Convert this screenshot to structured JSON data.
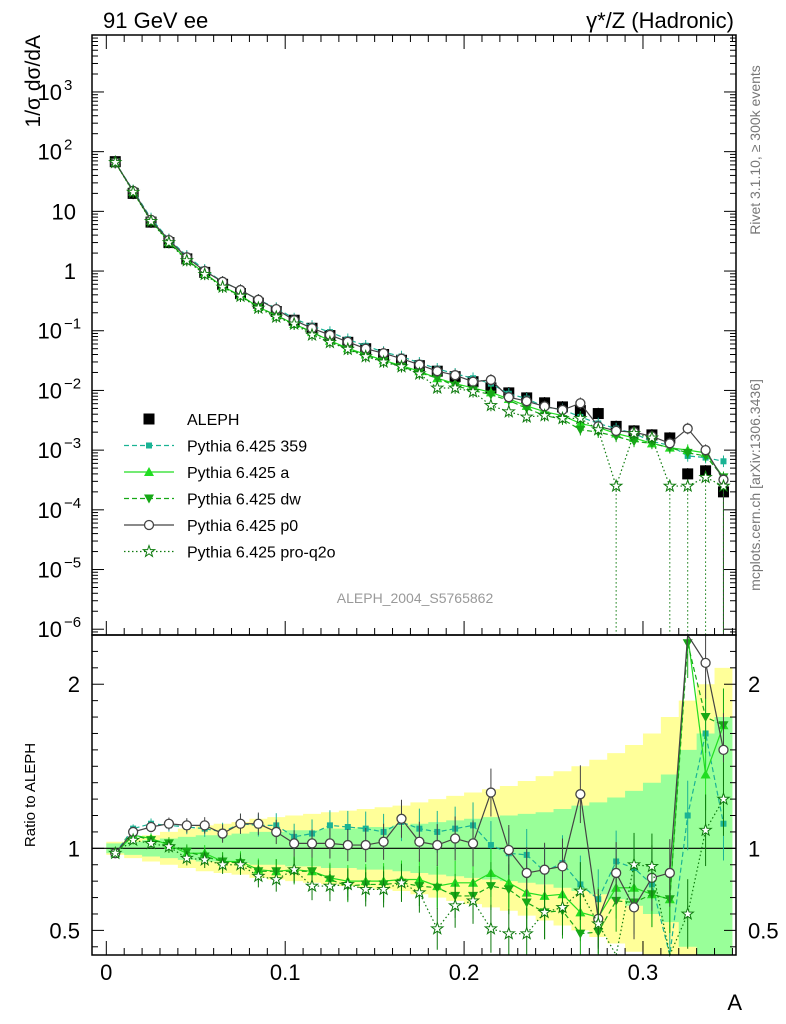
{
  "header": {
    "left_title": "91 GeV ee",
    "right_title": "γ*/Z (Hadronic)"
  },
  "side_labels": {
    "rivet": "Rivet 3.1.10, ≥ 300k events",
    "mcplots": "mcplots.cern.ch [arXiv:1306.3436]"
  },
  "watermark": "ALEPH_2004_S5765862",
  "colors": {
    "ALEPH": "#000000",
    "Pythia 6.425 359": "#1ab394",
    "Pythia 6.425 a": "#22dd22",
    "Pythia 6.425 dw": "#16a816",
    "Pythia 6.425 p0": "#444444",
    "Pythia 6.425 pro-q2o": "#0d7a0d",
    "band_yellow": "#ffff99",
    "band_green": "#99ff99"
  },
  "chart_data": [
    {
      "type": "line",
      "log_y": true,
      "ylabel": "1/σ dσ/dA",
      "xlabel": "",
      "xlim": [
        -0.008,
        0.352
      ],
      "ylim": [
        8e-07,
        9000
      ],
      "y_ticks": [
        {
          "v": 1e-06,
          "base": "10",
          "exp": "−6"
        },
        {
          "v": 1e-05,
          "base": "10",
          "exp": "−5"
        },
        {
          "v": 0.0001,
          "base": "10",
          "exp": "−4"
        },
        {
          "v": 0.001,
          "base": "10",
          "exp": "−3"
        },
        {
          "v": 0.01,
          "base": "10",
          "exp": "−2"
        },
        {
          "v": 0.1,
          "base": "10",
          "exp": "−1"
        },
        {
          "v": 1,
          "base": "1",
          "exp": ""
        },
        {
          "v": 10,
          "base": "10",
          "exp": ""
        },
        {
          "v": 100,
          "base": "10",
          "exp": "2"
        },
        {
          "v": 1000,
          "base": "10",
          "exp": "3"
        }
      ],
      "x": [
        0.005,
        0.015,
        0.025,
        0.035,
        0.045,
        0.055,
        0.065,
        0.075,
        0.085,
        0.095,
        0.105,
        0.115,
        0.125,
        0.135,
        0.145,
        0.155,
        0.165,
        0.175,
        0.185,
        0.195,
        0.205,
        0.215,
        0.225,
        0.235,
        0.245,
        0.255,
        0.265,
        0.275,
        0.285,
        0.295,
        0.305,
        0.315,
        0.325,
        0.335,
        0.345
      ],
      "legend": [
        "ALEPH",
        "Pythia 6.425 359",
        "Pythia 6.425 a",
        "Pythia 6.425 dw",
        "Pythia 6.425 p0",
        "Pythia 6.425 pro-q2o"
      ],
      "series": [
        {
          "name": "ALEPH",
          "values": [
            68,
            20,
            6.6,
            3.0,
            1.6,
            0.95,
            0.6,
            0.42,
            0.29,
            0.21,
            0.15,
            0.11,
            0.083,
            0.064,
            0.05,
            0.04,
            0.032,
            0.026,
            0.021,
            0.017,
            0.014,
            0.011,
            0.0091,
            0.0075,
            0.0062,
            0.0053,
            0.0046,
            0.0041,
            0.0025,
            0.0021,
            0.0018,
            0.0016,
            0.0004,
            0.00045,
            0.0002
          ]
        },
        {
          "name": "Pythia 6.425 359",
          "values": [
            66,
            22.5,
            7.6,
            3.4,
            1.8,
            1.05,
            0.66,
            0.48,
            0.33,
            0.24,
            0.16,
            0.12,
            0.095,
            0.072,
            0.056,
            0.044,
            0.037,
            0.029,
            0.023,
            0.019,
            0.016,
            0.013,
            0.0088,
            0.0073,
            0.0053,
            0.0048,
            0.0036,
            0.0028,
            0.0023,
            0.0019,
            0.0014,
            0.0012,
            0.0008,
            0.00075,
            0.00065
          ]
        },
        {
          "name": "Pythia 6.425 a",
          "values": [
            66,
            21.5,
            7.0,
            3.1,
            1.55,
            0.92,
            0.55,
            0.39,
            0.25,
            0.18,
            0.13,
            0.095,
            0.068,
            0.051,
            0.04,
            0.032,
            0.026,
            0.021,
            0.016,
            0.013,
            0.011,
            0.0093,
            0.0072,
            0.0055,
            0.0044,
            0.0038,
            0.0028,
            0.0024,
            0.0019,
            0.0016,
            0.0013,
            0.0011,
            0.001,
            0.0009,
            0.00035
          ]
        },
        {
          "name": "Pythia 6.425 dw",
          "values": [
            66,
            21.5,
            6.9,
            3.1,
            1.55,
            0.9,
            0.55,
            0.38,
            0.25,
            0.18,
            0.13,
            0.095,
            0.067,
            0.049,
            0.039,
            0.031,
            0.025,
            0.02,
            0.016,
            0.012,
            0.01,
            0.0085,
            0.0068,
            0.005,
            0.0038,
            0.0033,
            0.0022,
            0.002,
            0.0017,
            0.0014,
            0.0013,
            0.0011,
            0.0009,
            0.0008,
            0.00035
          ]
        },
        {
          "name": "Pythia 6.425 p0",
          "values": [
            66,
            22,
            7.2,
            3.3,
            1.7,
            1.0,
            0.66,
            0.48,
            0.33,
            0.23,
            0.15,
            0.11,
            0.085,
            0.065,
            0.05,
            0.042,
            0.034,
            0.027,
            0.021,
            0.018,
            0.014,
            0.015,
            0.0077,
            0.0066,
            0.0054,
            0.0047,
            0.0061,
            0.0025,
            0.0021,
            0.002,
            0.0017,
            0.0013,
            0.0023,
            0.001,
            0.00032
          ]
        },
        {
          "name": "Pythia 6.425 pro-q2o",
          "values": [
            66,
            21,
            6.8,
            3.0,
            1.5,
            0.88,
            0.54,
            0.38,
            0.24,
            0.17,
            0.13,
            0.085,
            0.064,
            0.049,
            0.037,
            0.03,
            0.025,
            0.019,
            0.011,
            0.011,
            0.0095,
            0.0056,
            0.0044,
            0.0036,
            0.0038,
            0.0034,
            0.0034,
            0.0022,
            0.00025,
            0.0019,
            0.0016,
            0.00025,
            0.00025,
            0.00035,
            0.00025
          ]
        }
      ]
    },
    {
      "type": "line",
      "log_y": false,
      "ylabel": "Ratio to ALEPH",
      "xlabel": "A",
      "xlim": [
        -0.008,
        0.352
      ],
      "ylim": [
        0.35,
        2.3
      ],
      "y_ticks": [
        0.5,
        1,
        2
      ],
      "x_ticks": [
        {
          "v": 0,
          "label": "0"
        },
        {
          "v": 0.1,
          "label": "0.1"
        },
        {
          "v": 0.2,
          "label": "0.2"
        },
        {
          "v": 0.3,
          "label": "0.3"
        }
      ],
      "band_inner_halfwidth": [
        0.03,
        0.04,
        0.05,
        0.06,
        0.07,
        0.08,
        0.08,
        0.09,
        0.1,
        0.1,
        0.11,
        0.11,
        0.12,
        0.12,
        0.13,
        0.13,
        0.14,
        0.15,
        0.16,
        0.17,
        0.18,
        0.19,
        0.2,
        0.21,
        0.22,
        0.24,
        0.26,
        0.28,
        0.31,
        0.35,
        0.4,
        0.45,
        0.6,
        0.7,
        0.8
      ],
      "band_outer_halfwidth": [
        0.04,
        0.06,
        0.08,
        0.1,
        0.12,
        0.14,
        0.15,
        0.16,
        0.18,
        0.19,
        0.2,
        0.21,
        0.22,
        0.23,
        0.24,
        0.25,
        0.26,
        0.28,
        0.3,
        0.32,
        0.34,
        0.36,
        0.38,
        0.41,
        0.44,
        0.47,
        0.5,
        0.54,
        0.58,
        0.63,
        0.7,
        0.8,
        0.9,
        1.0,
        1.1
      ],
      "series": [
        {
          "name": "Pythia 6.425 359",
          "values": [
            0.97,
            1.12,
            1.15,
            1.14,
            1.13,
            1.12,
            1.1,
            1.15,
            1.14,
            1.14,
            1.07,
            1.09,
            1.14,
            1.13,
            1.12,
            1.1,
            1.16,
            1.12,
            1.1,
            1.12,
            1.14,
            1.02,
            0.97,
            0.96,
            0.86,
            0.91,
            0.78,
            0.69,
            0.92,
            0.88,
            0.78,
            0.33,
            1.2,
            1.7,
            1.15
          ]
        },
        {
          "name": "Pythia 6.425 a",
          "values": [
            0.97,
            1.08,
            1.06,
            1.02,
            0.97,
            0.97,
            0.92,
            0.92,
            0.87,
            0.86,
            0.87,
            0.86,
            0.82,
            0.8,
            0.8,
            0.8,
            0.81,
            0.81,
            0.77,
            0.79,
            0.79,
            0.85,
            0.79,
            0.73,
            0.71,
            0.72,
            0.61,
            0.58,
            0.76,
            0.76,
            0.72,
            0.69,
            2.5,
            1.45,
            1.75
          ]
        },
        {
          "name": "Pythia 6.425 dw",
          "values": [
            0.97,
            1.08,
            1.05,
            1.03,
            0.98,
            0.95,
            0.92,
            0.91,
            0.86,
            0.86,
            0.86,
            0.86,
            0.81,
            0.77,
            0.78,
            0.78,
            0.79,
            0.77,
            0.76,
            0.71,
            0.71,
            0.77,
            0.75,
            0.67,
            0.61,
            0.62,
            0.48,
            0.49,
            0.68,
            0.67,
            0.72,
            0.69,
            2.25,
            1.8,
            1.75
          ]
        },
        {
          "name": "Pythia 6.425 p0",
          "values": [
            0.97,
            1.1,
            1.13,
            1.15,
            1.14,
            1.14,
            1.09,
            1.15,
            1.15,
            1.1,
            1.03,
            1.03,
            1.03,
            1.02,
            1.02,
            1.04,
            1.18,
            1.04,
            1.02,
            1.06,
            1.03,
            1.34,
            0.99,
            0.85,
            0.87,
            0.89,
            1.33,
            0.57,
            0.85,
            0.64,
            0.82,
            0.85,
            2.5,
            2.13,
            1.6
          ]
        },
        {
          "name": "Pythia 6.425 pro-q2o",
          "values": [
            0.97,
            1.05,
            1.03,
            1.01,
            0.94,
            0.93,
            0.9,
            0.9,
            0.83,
            0.81,
            0.87,
            0.77,
            0.77,
            0.78,
            0.75,
            0.75,
            0.79,
            0.73,
            0.51,
            0.65,
            0.68,
            0.51,
            0.48,
            0.48,
            0.61,
            0.64,
            0.74,
            0.54,
            0.1,
            0.9,
            0.89,
            0.16,
            0.6,
            1.11,
            1.3
          ]
        }
      ]
    }
  ]
}
